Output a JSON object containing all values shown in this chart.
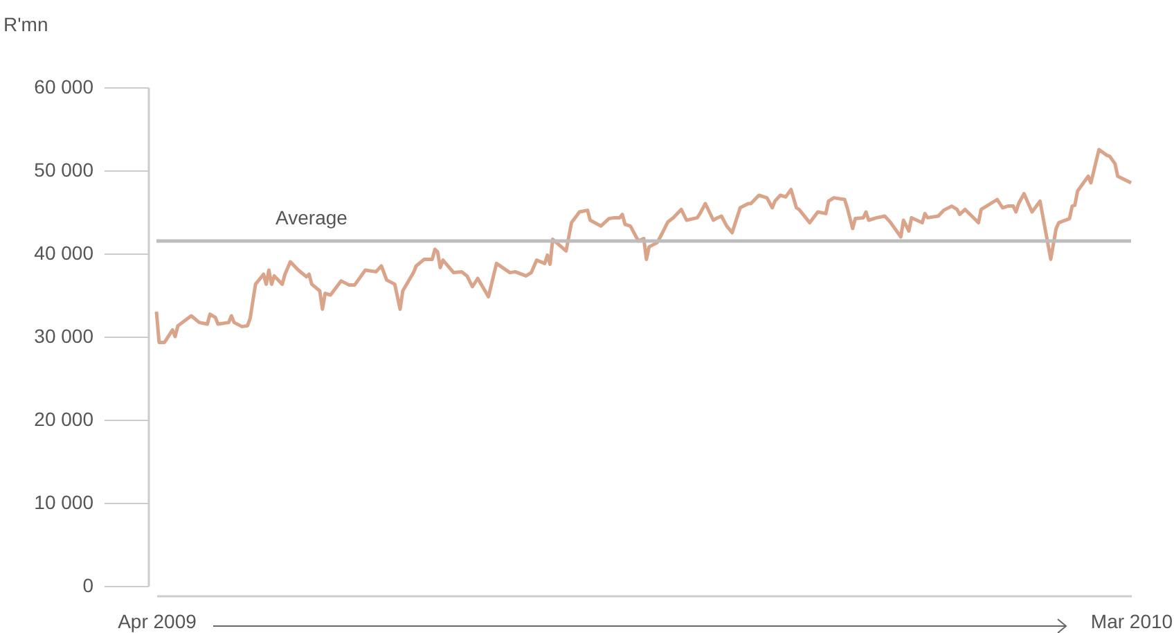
{
  "chart_data": {
    "type": "line",
    "ylabel": "R'mn",
    "x": [
      "2009-04-01",
      "2009-04-02",
      "2009-04-04",
      "2009-04-07",
      "2009-04-08",
      "2009-04-09",
      "2009-04-14",
      "2009-04-17",
      "2009-04-20",
      "2009-04-21",
      "2009-04-23",
      "2009-04-24",
      "2009-04-28",
      "2009-04-29",
      "2009-04-30",
      "2009-05-03",
      "2009-05-05",
      "2009-05-06",
      "2009-05-08",
      "2009-05-11",
      "2009-05-12",
      "2009-05-13",
      "2009-05-14",
      "2009-05-15",
      "2009-05-18",
      "2009-05-19",
      "2009-05-21",
      "2009-05-24",
      "2009-05-27",
      "2009-05-28",
      "2009-05-29",
      "2009-06-01",
      "2009-06-02",
      "2009-06-03",
      "2009-06-05",
      "2009-06-09",
      "2009-06-12",
      "2009-06-14",
      "2009-06-18",
      "2009-06-22",
      "2009-06-24",
      "2009-06-26",
      "2009-06-29",
      "2009-07-01",
      "2009-07-02",
      "2009-07-06",
      "2009-07-07",
      "2009-07-10",
      "2009-07-13",
      "2009-07-14",
      "2009-07-15",
      "2009-07-16",
      "2009-07-17",
      "2009-07-21",
      "2009-07-24",
      "2009-07-26",
      "2009-07-28",
      "2009-07-30",
      "2009-08-03",
      "2009-08-06",
      "2009-08-11",
      "2009-08-13",
      "2009-08-17",
      "2009-08-19",
      "2009-08-21",
      "2009-08-24",
      "2009-08-25",
      "2009-08-26",
      "2009-08-27",
      "2009-09-01",
      "2009-09-03",
      "2009-09-06",
      "2009-09-09",
      "2009-09-10",
      "2009-09-14",
      "2009-09-17",
      "2009-09-19",
      "2009-09-21",
      "2009-09-22",
      "2009-09-23",
      "2009-09-25",
      "2009-09-28",
      "2009-09-30",
      "2009-10-01",
      "2009-10-02",
      "2009-10-05",
      "2009-10-07",
      "2009-10-09",
      "2009-10-11",
      "2009-10-14",
      "2009-10-16",
      "2009-10-20",
      "2009-10-21",
      "2009-10-23",
      "2009-10-26",
      "2009-10-27",
      "2009-10-29",
      "2009-10-31",
      "2009-11-02",
      "2009-11-05",
      "2009-11-08",
      "2009-11-09",
      "2009-11-12",
      "2009-11-15",
      "2009-11-17",
      "2009-11-18",
      "2009-11-20",
      "2009-11-22",
      "2009-11-24",
      "2009-11-26",
      "2009-11-27",
      "2009-12-01",
      "2009-12-04",
      "2009-12-07",
      "2009-12-08",
      "2009-12-10",
      "2009-12-14",
      "2009-12-15",
      "2009-12-17",
      "2009-12-18",
      "2009-12-21",
      "2009-12-22",
      "2009-12-23",
      "2009-12-26",
      "2009-12-29",
      "2009-12-31",
      "2010-01-04",
      "2010-01-05",
      "2010-01-07",
      "2010-01-08",
      "2010-01-12",
      "2010-01-13",
      "2010-01-14",
      "2010-01-18",
      "2010-01-20",
      "2010-01-23",
      "2010-01-25",
      "2010-01-26",
      "2010-01-28",
      "2010-02-02",
      "2010-02-03",
      "2010-02-05",
      "2010-02-09",
      "2010-02-11",
      "2010-02-13",
      "2010-02-15",
      "2010-02-16",
      "2010-02-17",
      "2010-02-19",
      "2010-02-22",
      "2010-02-25",
      "2010-03-01",
      "2010-03-03",
      "2010-03-04",
      "2010-03-08",
      "2010-03-09",
      "2010-03-10",
      "2010-03-11",
      "2010-03-15",
      "2010-03-16",
      "2010-03-19",
      "2010-03-22",
      "2010-03-23",
      "2010-03-25",
      "2010-03-26",
      "2010-03-31"
    ],
    "series": [
      {
        "color": "#d9a48a",
        "values": [
          33000,
          29300,
          29300,
          30800,
          30000,
          31300,
          32500,
          31700,
          31500,
          32700,
          32300,
          31500,
          31700,
          32500,
          31700,
          31200,
          31300,
          32200,
          36300,
          37500,
          36300,
          38000,
          36300,
          37300,
          36300,
          37500,
          39000,
          38000,
          37200,
          37500,
          36300,
          35500,
          33300,
          35200,
          35000,
          36700,
          36200,
          36200,
          38000,
          37800,
          38500,
          36800,
          36300,
          33300,
          35500,
          37700,
          38500,
          39300,
          39300,
          40500,
          40200,
          38300,
          39200,
          37700,
          37800,
          37300,
          36000,
          37000,
          34800,
          38800,
          37700,
          37800,
          37300,
          37700,
          39200,
          38800,
          39800,
          38700,
          41700,
          40300,
          43700,
          45000,
          45200,
          44000,
          43300,
          44200,
          44300,
          44300,
          44700,
          43500,
          43300,
          41500,
          41800,
          39300,
          40800,
          41300,
          42500,
          43800,
          44300,
          45300,
          44000,
          44300,
          44800,
          46000,
          44000,
          44200,
          44500,
          43300,
          42500,
          45500,
          46000,
          46000,
          47000,
          46700,
          45500,
          46300,
          47000,
          46800,
          47700,
          45500,
          45300,
          43700,
          45000,
          44800,
          46300,
          46700,
          46500,
          45500,
          43000,
          44200,
          44300,
          45000,
          44000,
          44300,
          44500,
          43800,
          42000,
          44000,
          42700,
          44300,
          43700,
          44800,
          44300,
          44500,
          45200,
          45700,
          45300,
          44700,
          45300,
          43700,
          45300,
          45700,
          46500,
          45500,
          45700,
          45700,
          45000,
          46000,
          47200,
          45000,
          46300,
          39300,
          43000,
          43700,
          44200,
          45700,
          45800,
          47500,
          49300,
          48500,
          52500,
          51800,
          51700,
          50800,
          49300,
          48500
        ]
      }
    ],
    "xlim": [
      "2009-04-01",
      "2010-03-31"
    ],
    "xticks": [
      {
        "value": "2009-04-01",
        "label": "Apr 2009"
      },
      {
        "value": "2010-03-31",
        "label": "Mar 2010"
      }
    ],
    "ylim": [
      0,
      60000
    ],
    "yticks": [
      {
        "value": 0,
        "label": "0"
      },
      {
        "value": 10000,
        "label": "10 000"
      },
      {
        "value": 20000,
        "label": "20 000"
      },
      {
        "value": 30000,
        "label": "30 000"
      },
      {
        "value": 40000,
        "label": "40 000"
      },
      {
        "value": 50000,
        "label": "50 000"
      },
      {
        "value": 60000,
        "label": "60 000"
      }
    ],
    "ref_lines": [
      {
        "axis": "y",
        "value": 41500,
        "label": "Average",
        "color": "#bdbdbd"
      }
    ],
    "grid": false
  }
}
